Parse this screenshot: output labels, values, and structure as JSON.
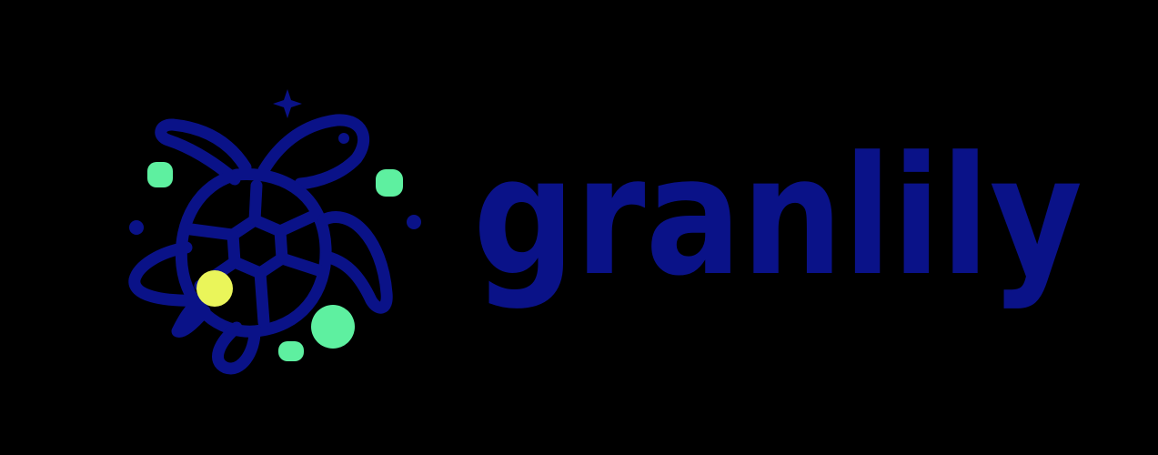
{
  "brand": {
    "name": "granlily",
    "colors": {
      "navy": "#0a1288",
      "mint": "#5ef0a0",
      "yellow": "#eaf55a",
      "background": "#000000"
    },
    "icon": "sea-turtle-icon"
  }
}
